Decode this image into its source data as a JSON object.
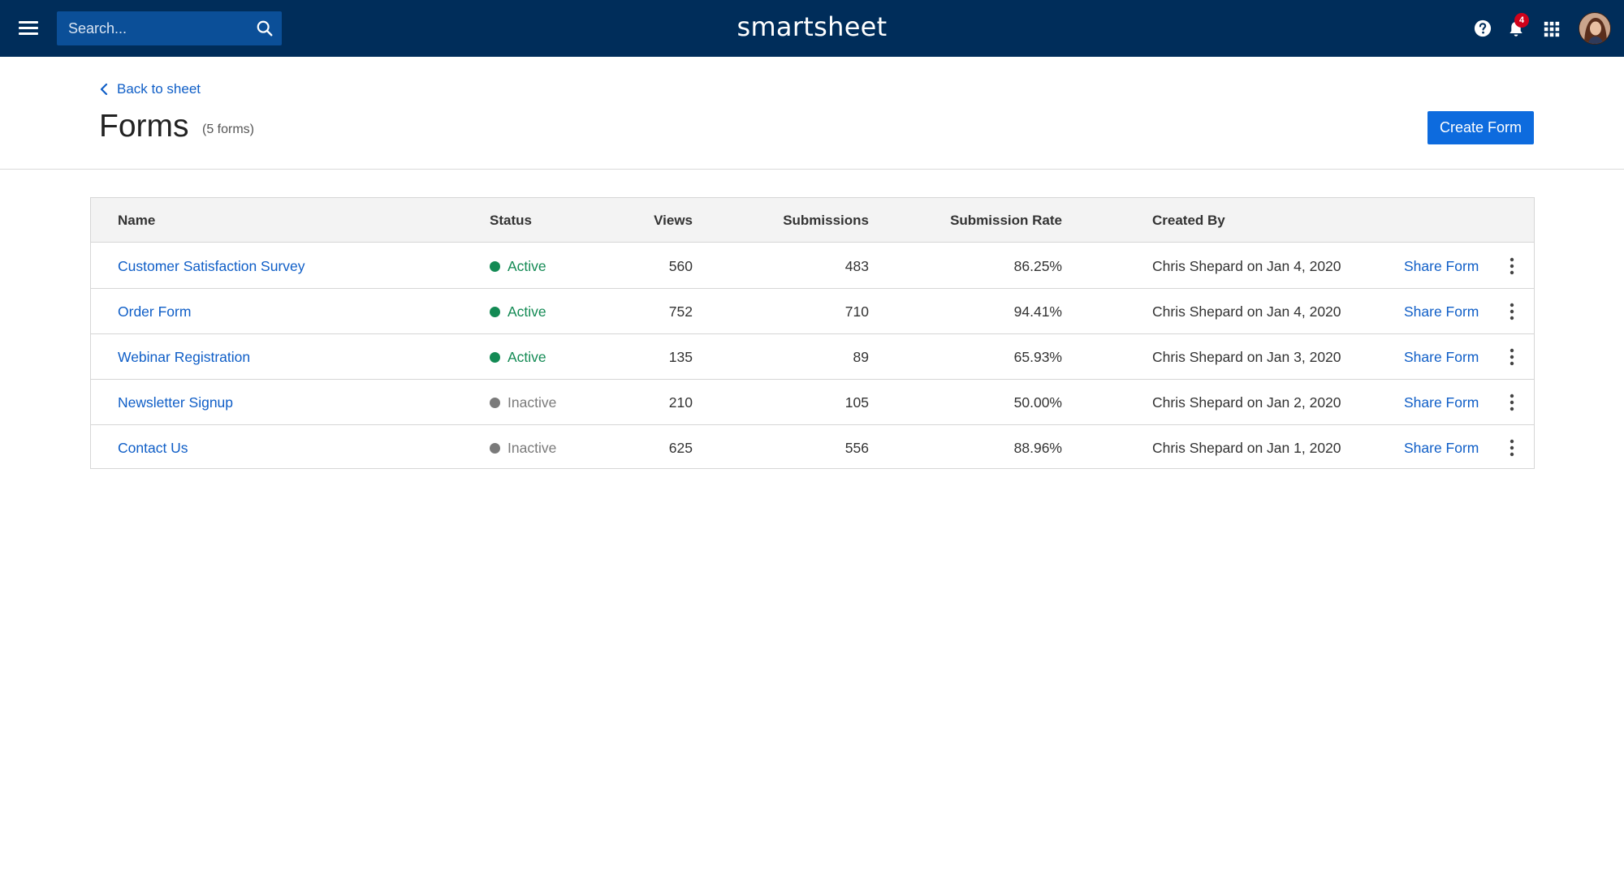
{
  "app": {
    "logo_text": "smartsheet",
    "search": {
      "placeholder": "Search...",
      "value": ""
    },
    "notifications": {
      "count": "4"
    },
    "colors": {
      "topbar": "#002d5a",
      "search_bg": "#0b4f98",
      "badge": "#d0021b"
    }
  },
  "header": {
    "back_label": "Back to sheet",
    "title": "Forms",
    "count_label": "(5 forms)",
    "create_button": "Create Form"
  },
  "table": {
    "columns": {
      "name": "Name",
      "status": "Status",
      "views": "Views",
      "submissions": "Submissions",
      "rate": "Submission Rate",
      "created_by": "Created By"
    },
    "share_label": "Share Form",
    "status_colors": {
      "Active": "#138a54",
      "Inactive": "#7a7a7a"
    },
    "rows": [
      {
        "name": "Customer Satisfaction Survey",
        "status": "Active",
        "views": "560",
        "submissions": "483",
        "rate": "86.25%",
        "created_by": "Chris Shepard on Jan 4, 2020"
      },
      {
        "name": "Order Form",
        "status": "Active",
        "views": "752",
        "submissions": "710",
        "rate": "94.41%",
        "created_by": "Chris Shepard on Jan 4, 2020"
      },
      {
        "name": "Webinar Registration",
        "status": "Active",
        "views": "135",
        "submissions": "89",
        "rate": "65.93%",
        "created_by": "Chris Shepard on Jan 3, 2020"
      },
      {
        "name": "Newsletter Signup",
        "status": "Inactive",
        "views": "210",
        "submissions": "105",
        "rate": "50.00%",
        "created_by": "Chris Shepard on Jan 2, 2020"
      },
      {
        "name": "Contact Us",
        "status": "Inactive",
        "views": "625",
        "submissions": "556",
        "rate": "88.96%",
        "created_by": "Chris Shepard on Jan 1, 2020"
      }
    ]
  }
}
